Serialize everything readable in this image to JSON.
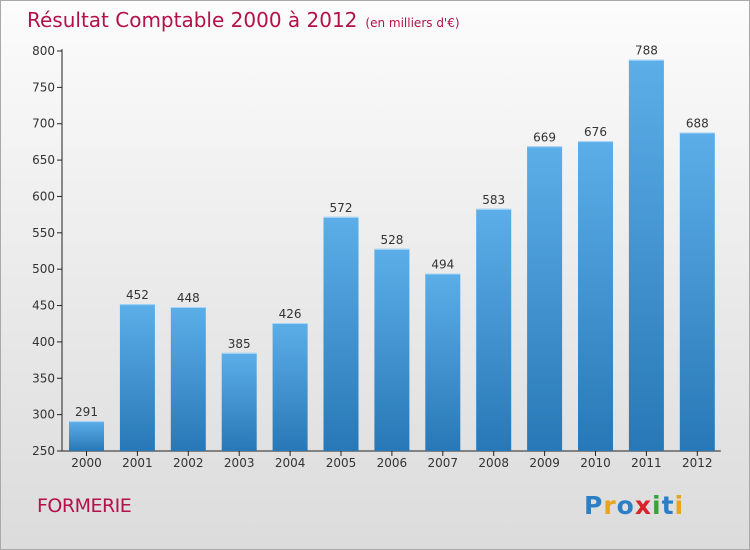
{
  "header": {
    "title": "Résultat Comptable 2000 à 2012",
    "subtitle": "(en milliers d'€)"
  },
  "footer": {
    "town": "FORMERIE",
    "logo": "Proxiti"
  },
  "colors": {
    "title": "#b4104a",
    "bar_top": "#5caee8",
    "bar_bottom": "#2878b7"
  },
  "chart_data": {
    "type": "bar",
    "categories": [
      "2000",
      "2001",
      "2002",
      "2003",
      "2004",
      "2005",
      "2006",
      "2007",
      "2008",
      "2009",
      "2010",
      "2011",
      "2012"
    ],
    "values": [
      291,
      452,
      448,
      385,
      426,
      572,
      528,
      494,
      583,
      669,
      676,
      788,
      688
    ],
    "title": "Résultat Comptable 2000 à 2012",
    "subtitle": "(en milliers d'€)",
    "ylim": [
      250,
      800
    ],
    "yticks": [
      250,
      300,
      350,
      400,
      450,
      500,
      550,
      600,
      650,
      700,
      750,
      800
    ],
    "grid": false,
    "legend": "none"
  }
}
